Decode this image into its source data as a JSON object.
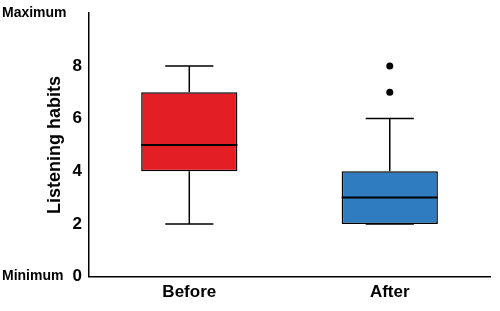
{
  "chart_data": {
    "type": "boxplot",
    "categories": [
      "Before",
      "After"
    ],
    "colors": [
      "#e31e24",
      "#2f7cc0"
    ],
    "boxes": [
      {
        "min": 2,
        "q1": 4,
        "median": 5,
        "q3": 7,
        "max": 8,
        "outliers": []
      },
      {
        "min": 2,
        "q1": 2,
        "median": 3,
        "q3": 4,
        "max": 6,
        "outliers": [
          7,
          8
        ]
      }
    ],
    "y_label": "Listening habits",
    "ylim": [
      0,
      10
    ],
    "yticks": [
      0,
      2,
      4,
      6,
      8
    ],
    "annotations": [
      {
        "text": "Maximum",
        "y": 10
      },
      {
        "text": "Minimum",
        "y": 0
      }
    ],
    "grid": false
  }
}
